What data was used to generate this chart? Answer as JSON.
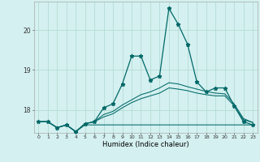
{
  "xlabel": "Humidex (Indice chaleur)",
  "bg_color": "#d4f0f0",
  "grid_color": "#b0d8d0",
  "line_color": "#006868",
  "xlim": [
    -0.5,
    23.5
  ],
  "ylim": [
    17.42,
    20.72
  ],
  "yticks": [
    18,
    19,
    20
  ],
  "xticks": [
    0,
    1,
    2,
    3,
    4,
    5,
    6,
    7,
    8,
    9,
    10,
    11,
    12,
    13,
    14,
    15,
    16,
    17,
    18,
    19,
    20,
    21,
    22,
    23
  ],
  "series_main": [
    17.7,
    17.7,
    17.55,
    17.62,
    17.45,
    17.65,
    17.7,
    18.05,
    18.15,
    18.65,
    19.35,
    19.35,
    18.75,
    18.85,
    20.55,
    20.15,
    19.65,
    18.7,
    18.45,
    18.55,
    18.55,
    18.1,
    17.7,
    17.62
  ],
  "series_flat": [
    17.7,
    17.7,
    17.55,
    17.62,
    17.45,
    17.62,
    17.62,
    17.62,
    17.62,
    17.62,
    17.62,
    17.62,
    17.62,
    17.62,
    17.62,
    17.62,
    17.62,
    17.62,
    17.62,
    17.62,
    17.62,
    17.62,
    17.62,
    17.62
  ],
  "series_low": [
    17.7,
    17.7,
    17.55,
    17.62,
    17.45,
    17.65,
    17.7,
    17.82,
    17.9,
    18.05,
    18.18,
    18.28,
    18.35,
    18.42,
    18.55,
    18.52,
    18.48,
    18.42,
    18.38,
    18.35,
    18.35,
    18.1,
    17.75,
    17.68
  ],
  "series_mid": [
    17.7,
    17.7,
    17.55,
    17.62,
    17.45,
    17.65,
    17.7,
    17.88,
    17.96,
    18.12,
    18.25,
    18.38,
    18.45,
    18.55,
    18.68,
    18.65,
    18.58,
    18.52,
    18.46,
    18.42,
    18.4,
    18.15,
    17.78,
    17.68
  ]
}
